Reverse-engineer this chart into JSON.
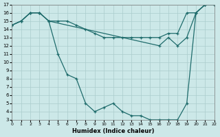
{
  "xlabel": "Humidex (Indice chaleur)",
  "bg_color": "#cce8e8",
  "line_color": "#1e6b6b",
  "grid_color": "#aacccc",
  "xlim": [
    0,
    22
  ],
  "ylim": [
    3,
    17
  ],
  "xticks": [
    0,
    1,
    2,
    3,
    4,
    5,
    6,
    7,
    8,
    9,
    10,
    11,
    12,
    13,
    14,
    15,
    16,
    17,
    18,
    19,
    20,
    21,
    22
  ],
  "yticks": [
    3,
    4,
    5,
    6,
    7,
    8,
    9,
    10,
    11,
    12,
    13,
    14,
    15,
    16,
    17
  ],
  "line1_x": [
    0,
    1,
    2,
    3,
    4,
    5,
    6,
    7,
    8,
    9,
    10,
    11,
    12,
    13,
    14,
    15,
    16,
    17,
    18,
    19,
    20,
    21,
    22
  ],
  "line1_y": [
    14.5,
    15,
    16,
    16,
    15,
    15,
    15,
    14.5,
    14,
    13.5,
    13,
    13,
    13,
    13,
    13,
    13,
    13,
    13.5,
    13.5,
    16,
    16,
    17,
    17
  ],
  "line2_x": [
    0,
    1,
    2,
    3,
    4,
    16,
    17,
    18,
    19,
    20,
    21,
    22
  ],
  "line2_y": [
    14.5,
    15,
    16,
    16,
    15,
    12,
    13,
    12,
    13,
    16,
    17,
    17
  ],
  "line3_x": [
    0,
    1,
    2,
    3,
    4,
    5,
    6,
    7,
    8,
    9,
    10,
    11,
    12,
    13,
    14,
    15,
    16,
    17,
    18,
    19,
    20,
    21,
    22
  ],
  "line3_y": [
    14.5,
    15,
    16,
    16,
    15,
    11,
    8.5,
    8,
    5,
    4,
    4.5,
    5,
    4,
    3.5,
    3.5,
    3,
    3,
    3,
    3,
    5,
    16,
    17,
    17
  ]
}
